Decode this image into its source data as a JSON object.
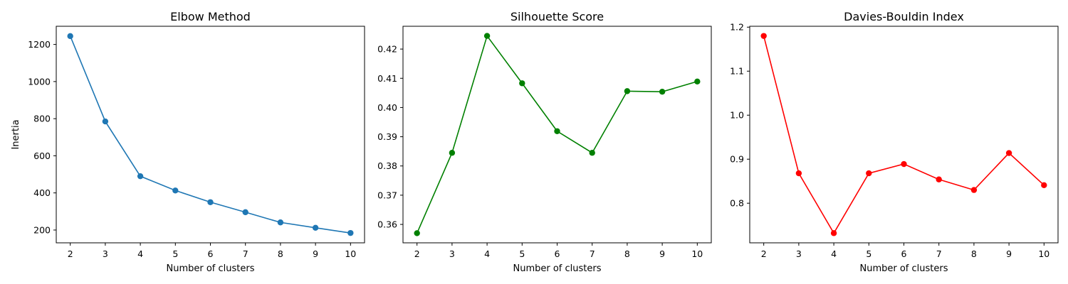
{
  "chart_data": [
    {
      "type": "line",
      "title": "Elbow Method",
      "xlabel": "Number of clusters",
      "ylabel": "Inertia",
      "color": "#1f77b4",
      "x": [
        2,
        3,
        4,
        5,
        6,
        7,
        8,
        9,
        10
      ],
      "series": [
        {
          "values": [
            1245,
            785,
            490,
            413,
            350,
            296,
            241,
            212,
            184
          ]
        }
      ],
      "xlim": [
        1.6,
        10.4
      ],
      "ylim": [
        131,
        1298
      ],
      "xticks": [
        "2",
        "3",
        "4",
        "5",
        "6",
        "7",
        "8",
        "9",
        "10"
      ],
      "yticks": [
        "200",
        "400",
        "600",
        "800",
        "1000",
        "1200"
      ],
      "grid": false
    },
    {
      "type": "line",
      "title": "Silhouette Score",
      "xlabel": "Number of clusters",
      "ylabel": "",
      "color": "#008000",
      "x": [
        2,
        3,
        4,
        5,
        6,
        7,
        8,
        9,
        10
      ],
      "series": [
        {
          "values": [
            0.357,
            0.3845,
            0.4245,
            0.4083,
            0.3919,
            0.3845,
            0.4056,
            0.4054,
            0.4089
          ]
        }
      ],
      "xlim": [
        1.6,
        10.4
      ],
      "ylim": [
        0.3537,
        0.4278
      ],
      "xticks": [
        "2",
        "3",
        "4",
        "5",
        "6",
        "7",
        "8",
        "9",
        "10"
      ],
      "yticks": [
        "0.36",
        "0.37",
        "0.38",
        "0.39",
        "0.40",
        "0.41",
        "0.42"
      ],
      "grid": false
    },
    {
      "type": "line",
      "title": "Davies-Bouldin Index",
      "xlabel": "Number of clusters",
      "ylabel": "",
      "color": "#ff0000",
      "x": [
        2,
        3,
        4,
        5,
        6,
        7,
        8,
        9,
        10
      ],
      "series": [
        {
          "values": [
            1.18,
            0.868,
            0.732,
            0.868,
            0.889,
            0.854,
            0.83,
            0.914,
            0.841
          ]
        }
      ],
      "xlim": [
        1.6,
        10.4
      ],
      "ylim": [
        0.71,
        1.202
      ],
      "xticks": [
        "2",
        "3",
        "4",
        "5",
        "6",
        "7",
        "8",
        "9",
        "10"
      ],
      "yticks": [
        "0.8",
        "0.9",
        "1.0",
        "1.1",
        "1.2"
      ],
      "grid": false
    }
  ]
}
